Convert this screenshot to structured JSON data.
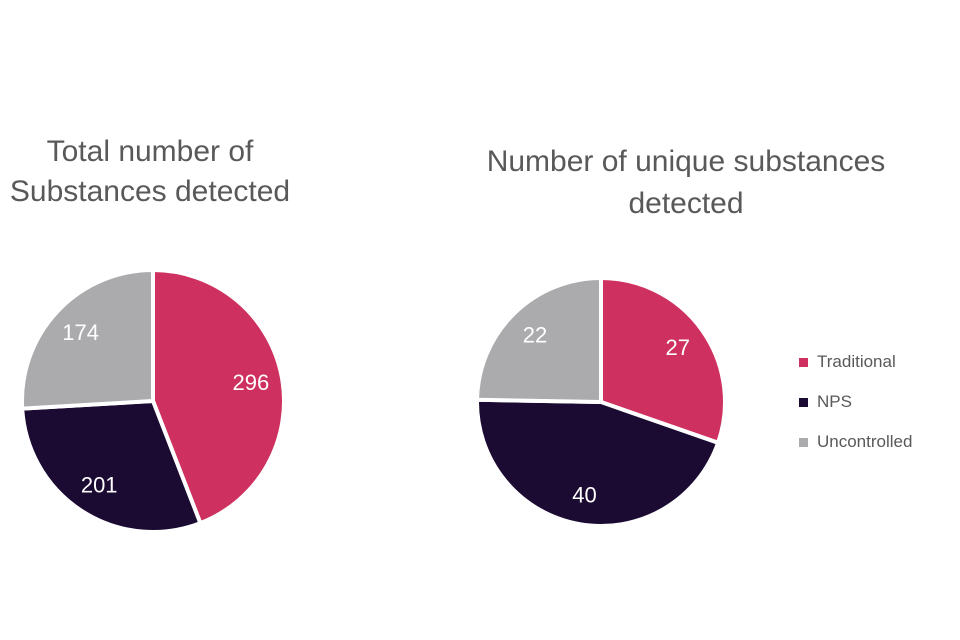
{
  "page": {
    "background": "#ffffff"
  },
  "colors": {
    "traditional": "#CE305F",
    "nps": "#1B0A32",
    "uncontrolled": "#ABABAD",
    "title_text": "#595959",
    "legend_text": "#595959",
    "data_label_text": "#ffffff",
    "slice_border": "#ffffff"
  },
  "chart_data": [
    {
      "type": "pie",
      "title": "Total number of\nSubstances detected",
      "start_angle_deg": 0,
      "direction": "clockwise",
      "data_labels": "values",
      "slices": [
        {
          "label": "Traditional",
          "value": 296,
          "color": "#CE305F"
        },
        {
          "label": "NPS",
          "value": 201,
          "color": "#1B0A32"
        },
        {
          "label": "Uncontrolled",
          "value": 174,
          "color": "#ABABAD"
        }
      ]
    },
    {
      "type": "pie",
      "title": "Number of unique substances\ndetected",
      "start_angle_deg": 0,
      "direction": "clockwise",
      "data_labels": "values",
      "slices": [
        {
          "label": "Traditional",
          "value": 27,
          "color": "#CE305F"
        },
        {
          "label": "NPS",
          "value": 40,
          "color": "#1B0A32"
        },
        {
          "label": "Uncontrolled",
          "value": 22,
          "color": "#ABABAD"
        }
      ]
    }
  ],
  "legend": {
    "position": "right",
    "items": [
      {
        "label": "Traditional",
        "color": "#CE305F"
      },
      {
        "label": "NPS",
        "color": "#1B0A32"
      },
      {
        "label": "Uncontrolled",
        "color": "#ABABAD"
      }
    ]
  }
}
